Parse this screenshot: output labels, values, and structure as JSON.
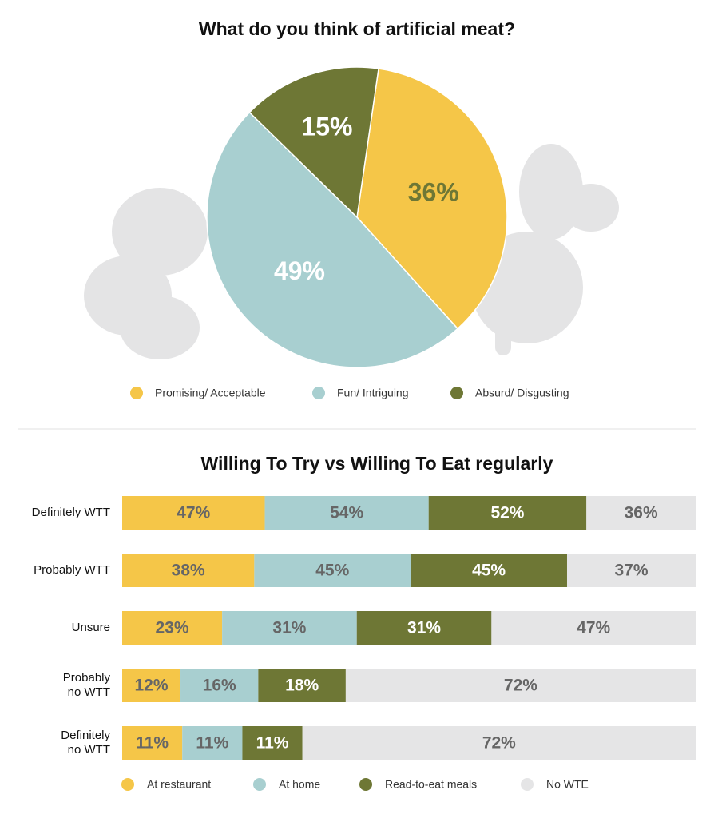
{
  "chart_data": [
    {
      "type": "pie",
      "title": "What do you think of artificial meat?",
      "categories": [
        "Promising/ Acceptable",
        "Fun/ Intriguing",
        "Absurd/ Disgusting"
      ],
      "values": [
        36,
        49,
        15
      ],
      "value_labels": [
        "36%",
        "49%",
        "15%"
      ],
      "colors": [
        "#f5c648",
        "#a8cfd0",
        "#6e7735"
      ],
      "label_colors": [
        "#6e7735",
        "#ffffff",
        "#ffffff"
      ]
    },
    {
      "type": "stacked-bar",
      "title": "Willing To Try vs Willing To Eat regularly",
      "categories": [
        "Definitely WTT",
        "Probably WTT",
        "Unsure",
        "Probably\nno WTT",
        "Definitely\nno WTT"
      ],
      "series": [
        {
          "name": "At restaurant",
          "color": "#f5c648",
          "label_color": "#666666",
          "values": [
            47,
            38,
            23,
            12,
            11
          ],
          "value_labels": [
            "47%",
            "38%",
            "23%",
            "12%",
            "11%"
          ]
        },
        {
          "name": "At home",
          "color": "#a8cfd0",
          "label_color": "#666666",
          "values": [
            54,
            45,
            31,
            16,
            11
          ],
          "value_labels": [
            "54%",
            "45%",
            "31%",
            "16%",
            "11%"
          ]
        },
        {
          "name": "Read-to-eat meals",
          "color": "#6e7735",
          "label_color": "#ffffff",
          "values": [
            52,
            45,
            31,
            18,
            11
          ],
          "value_labels": [
            "52%",
            "45%",
            "31%",
            "18%",
            "11%"
          ]
        },
        {
          "name": "No WTE",
          "color": "#e5e5e6",
          "label_color": "#666666",
          "values": [
            36,
            37,
            47,
            72,
            72
          ],
          "value_labels": [
            "36%",
            "37%",
            "47%",
            "72%",
            "72%"
          ]
        }
      ]
    }
  ]
}
